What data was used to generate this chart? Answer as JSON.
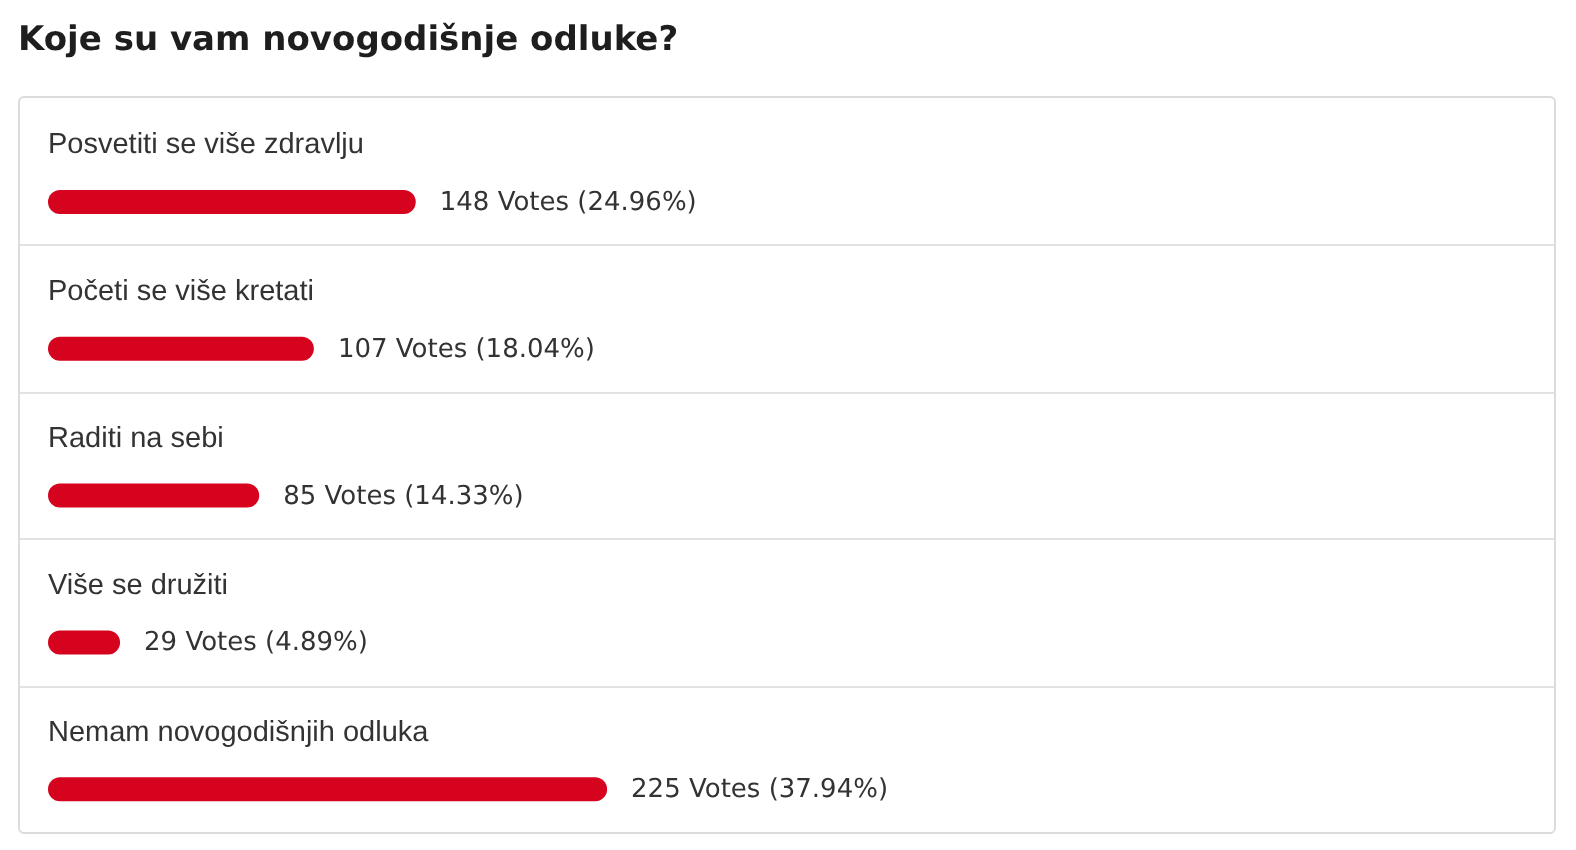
{
  "chart_data": {
    "type": "bar",
    "orientation": "horizontal",
    "title": "Koje su vam novogodišnje odluke?",
    "categories": [
      "Posvetiti se više zdravlju",
      "Početi se više kretati",
      "Raditi na sebi",
      "Više se družiti",
      "Nemam novogodišnjih odluka"
    ],
    "values": [
      148,
      107,
      85,
      29,
      225
    ],
    "color": "#d6031f",
    "value_labels": [
      "148 Votes (24.96%)",
      "107 Votes (18.04%)",
      "85 Votes (14.33%)",
      "29 Votes (4.89%)",
      "225 Votes (37.94%)"
    ],
    "tick_labels": "y"
  }
}
